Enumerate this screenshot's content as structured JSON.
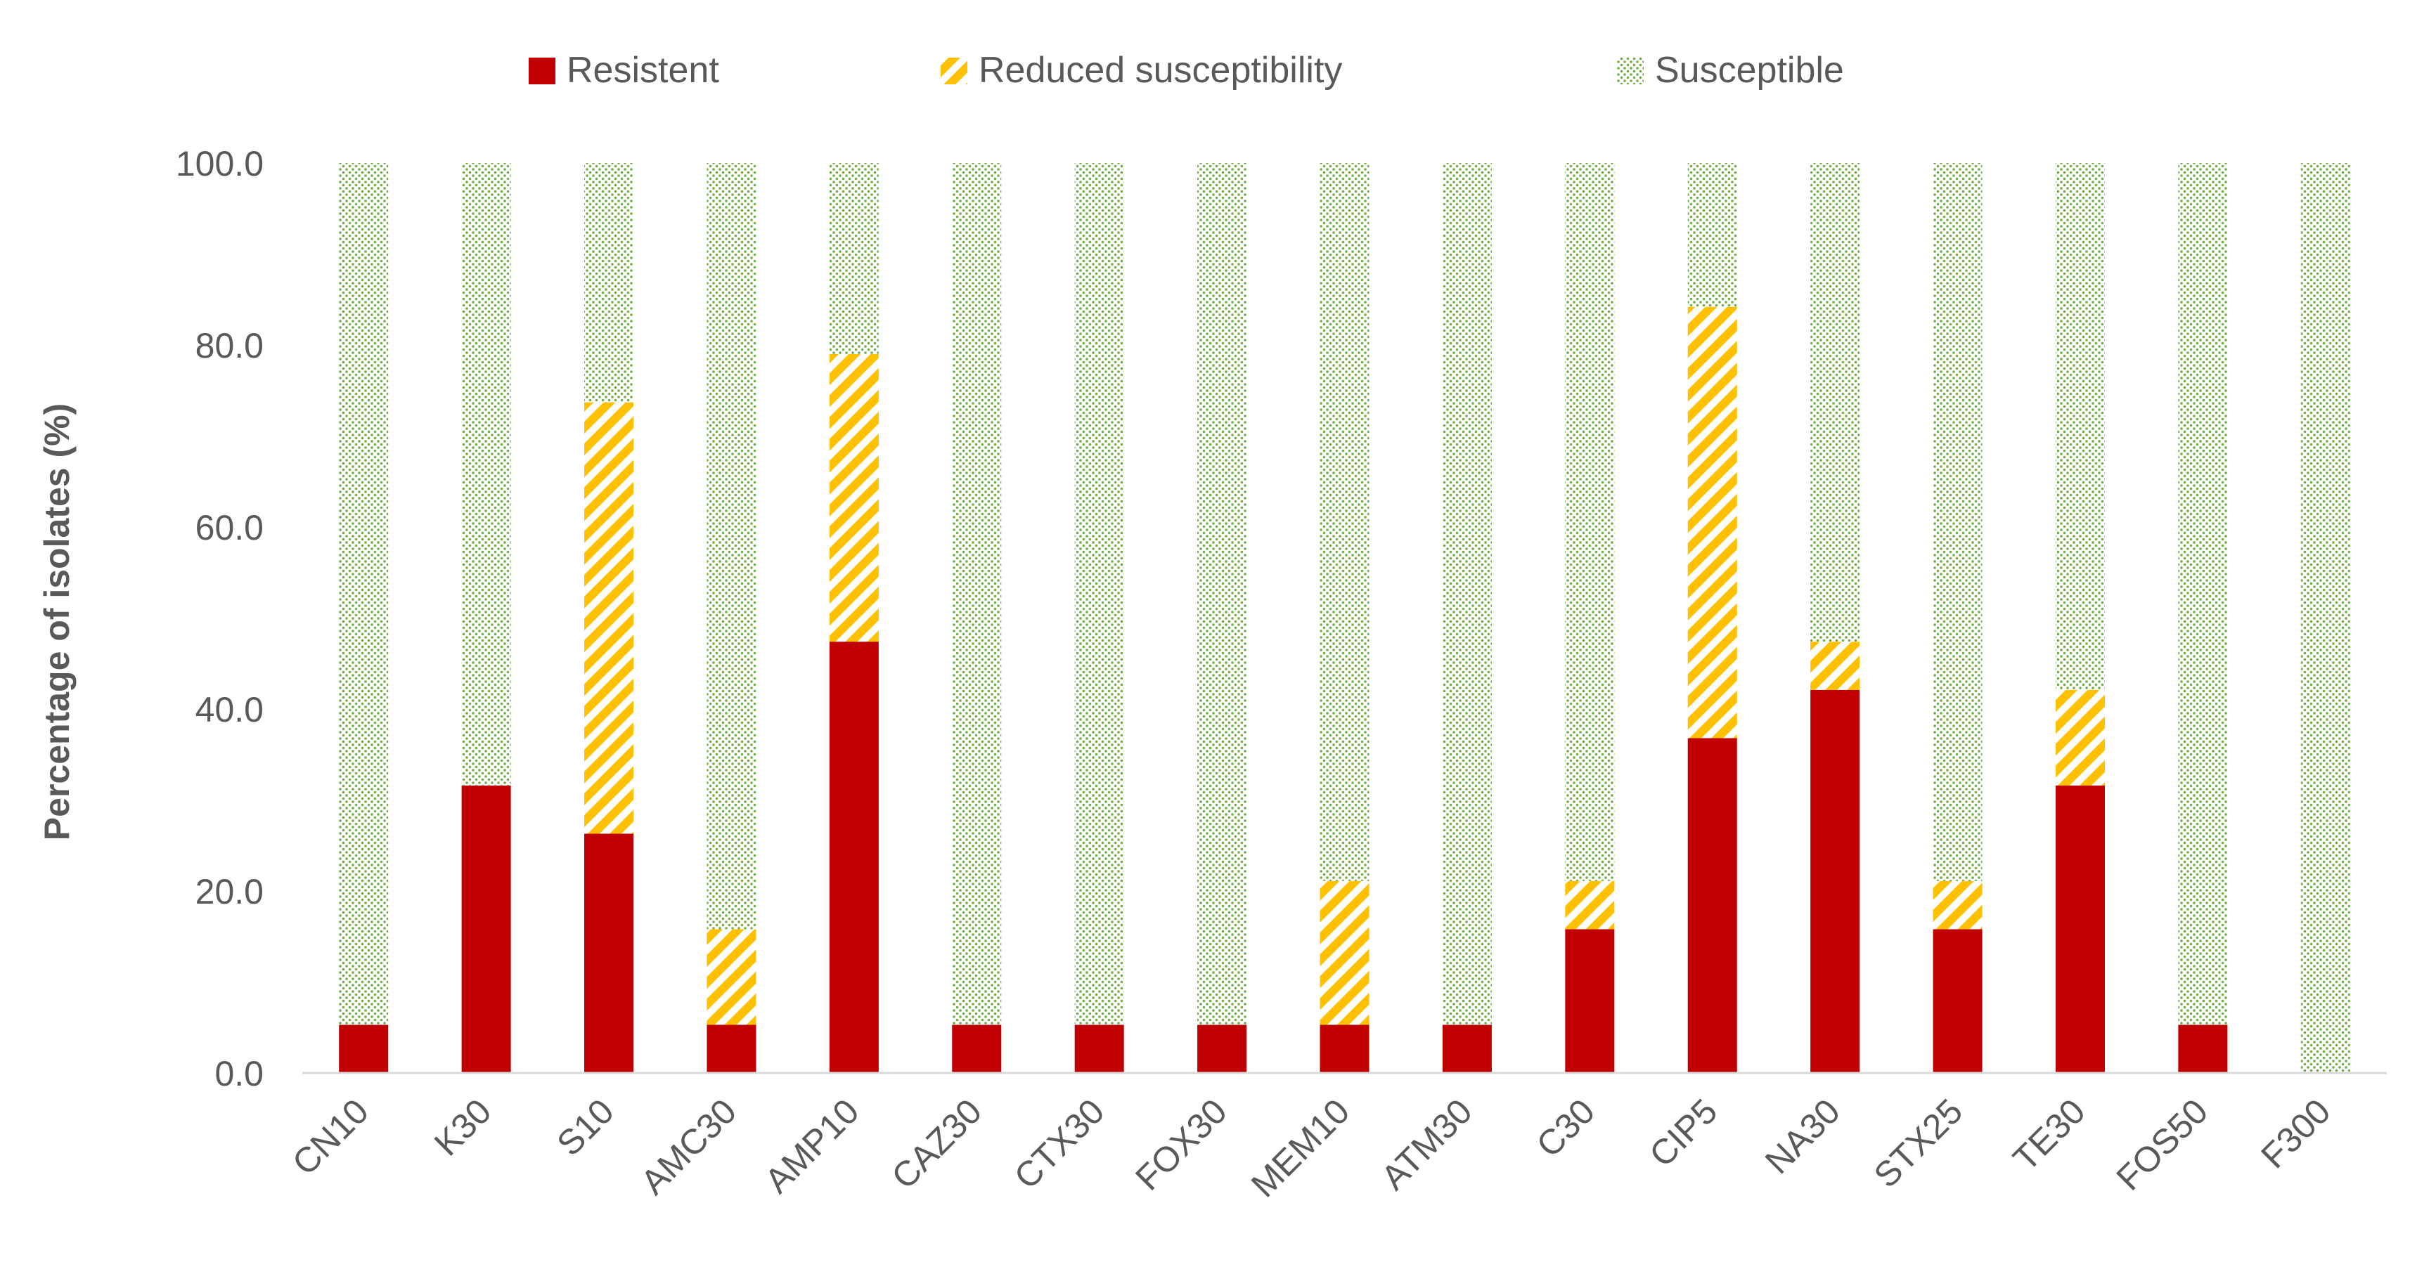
{
  "chart_data": {
    "type": "bar",
    "stacked": true,
    "title": "",
    "xlabel": "",
    "ylabel": "Percentage of isolates (%)",
    "ylim": [
      0,
      100
    ],
    "yticks": [
      "0.0",
      "20.0",
      "40.0",
      "60.0",
      "80.0",
      "100.0"
    ],
    "grid": false,
    "legend_position": "top",
    "categories": [
      "CN10",
      "K30",
      "S10",
      "AMC30",
      "AMP10",
      "CAZ30",
      "CTX30",
      "FOX30",
      "MEM10",
      "ATM30",
      "C30",
      "CIP5",
      "NA30",
      "STX25",
      "TE30",
      "FOS50",
      "F300"
    ],
    "series": [
      {
        "name": "Resistent",
        "color": "#C00000",
        "pattern": "solid",
        "values": [
          5.3,
          31.6,
          26.3,
          5.3,
          47.4,
          5.3,
          5.3,
          5.3,
          5.3,
          5.3,
          15.8,
          36.8,
          42.1,
          15.8,
          31.6,
          5.3,
          0.0
        ]
      },
      {
        "name": "Reduced susceptibility",
        "color": "#FFC000",
        "pattern": "diagonal-hatch",
        "values": [
          0.0,
          0.0,
          47.4,
          10.5,
          31.6,
          0.0,
          0.0,
          0.0,
          15.8,
          0.0,
          5.3,
          47.4,
          5.3,
          5.3,
          10.5,
          0.0,
          0.0
        ]
      },
      {
        "name": "Susceptible",
        "color": "#70AD47",
        "pattern": "dotted",
        "values": [
          94.7,
          68.4,
          26.3,
          84.2,
          21.0,
          94.7,
          94.7,
          94.7,
          78.9,
          94.7,
          78.9,
          15.8,
          52.6,
          78.9,
          57.9,
          94.7,
          100.0
        ]
      }
    ]
  }
}
